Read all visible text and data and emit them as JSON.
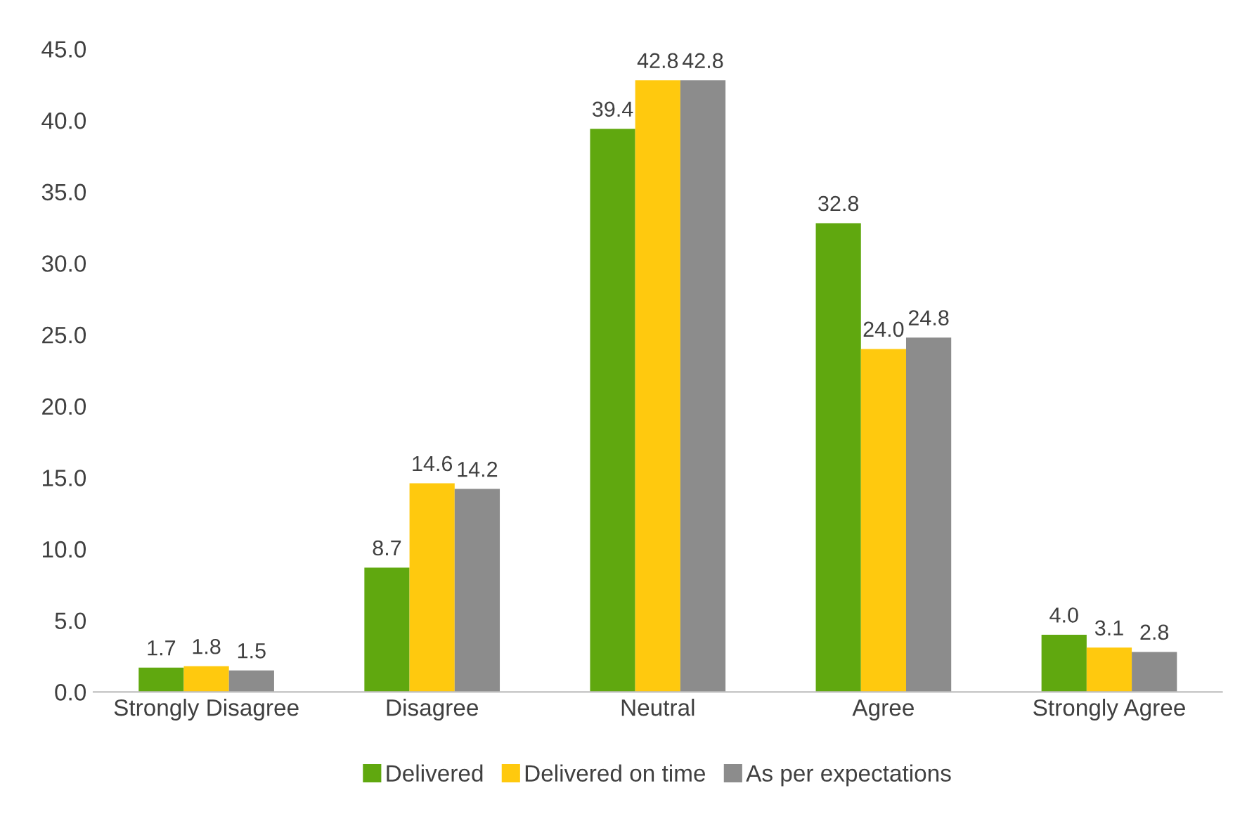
{
  "chart_data": {
    "type": "bar",
    "categories": [
      "Strongly Disagree",
      "Disagree",
      "Neutral",
      "Agree",
      "Strongly Agree"
    ],
    "series": [
      {
        "name": "Delivered",
        "color": "#60a80f",
        "values": [
          1.7,
          8.7,
          39.4,
          32.8,
          4.0
        ],
        "value_labels": [
          "1.7",
          "8.7",
          "39.4",
          "32.8",
          "4.0"
        ]
      },
      {
        "name": "Delivered on time",
        "color": "#ffc90e",
        "values": [
          1.8,
          14.6,
          42.8,
          24.0,
          3.1
        ],
        "value_labels": [
          "1.8",
          "14.6",
          "42.8",
          "24.0",
          "3.1"
        ]
      },
      {
        "name": "As per expectations",
        "color": "#8c8c8c",
        "values": [
          1.5,
          14.2,
          42.8,
          24.8,
          2.8
        ],
        "value_labels": [
          "1.5",
          "14.2",
          "42.8",
          "24.8",
          "2.8"
        ]
      }
    ],
    "ylim": [
      0,
      45
    ],
    "yticks": [
      {
        "value": 0,
        "label": "0.0"
      },
      {
        "value": 5,
        "label": "5.0"
      },
      {
        "value": 10,
        "label": "10.0"
      },
      {
        "value": 15,
        "label": "15.0"
      },
      {
        "value": 20,
        "label": "20.0"
      },
      {
        "value": 25,
        "label": "25.0"
      },
      {
        "value": 30,
        "label": "30.0"
      },
      {
        "value": 35,
        "label": "35.0"
      },
      {
        "value": 40,
        "label": "40.0"
      },
      {
        "value": 45,
        "label": "45.0"
      }
    ],
    "grid": false,
    "legend": "bottom"
  }
}
